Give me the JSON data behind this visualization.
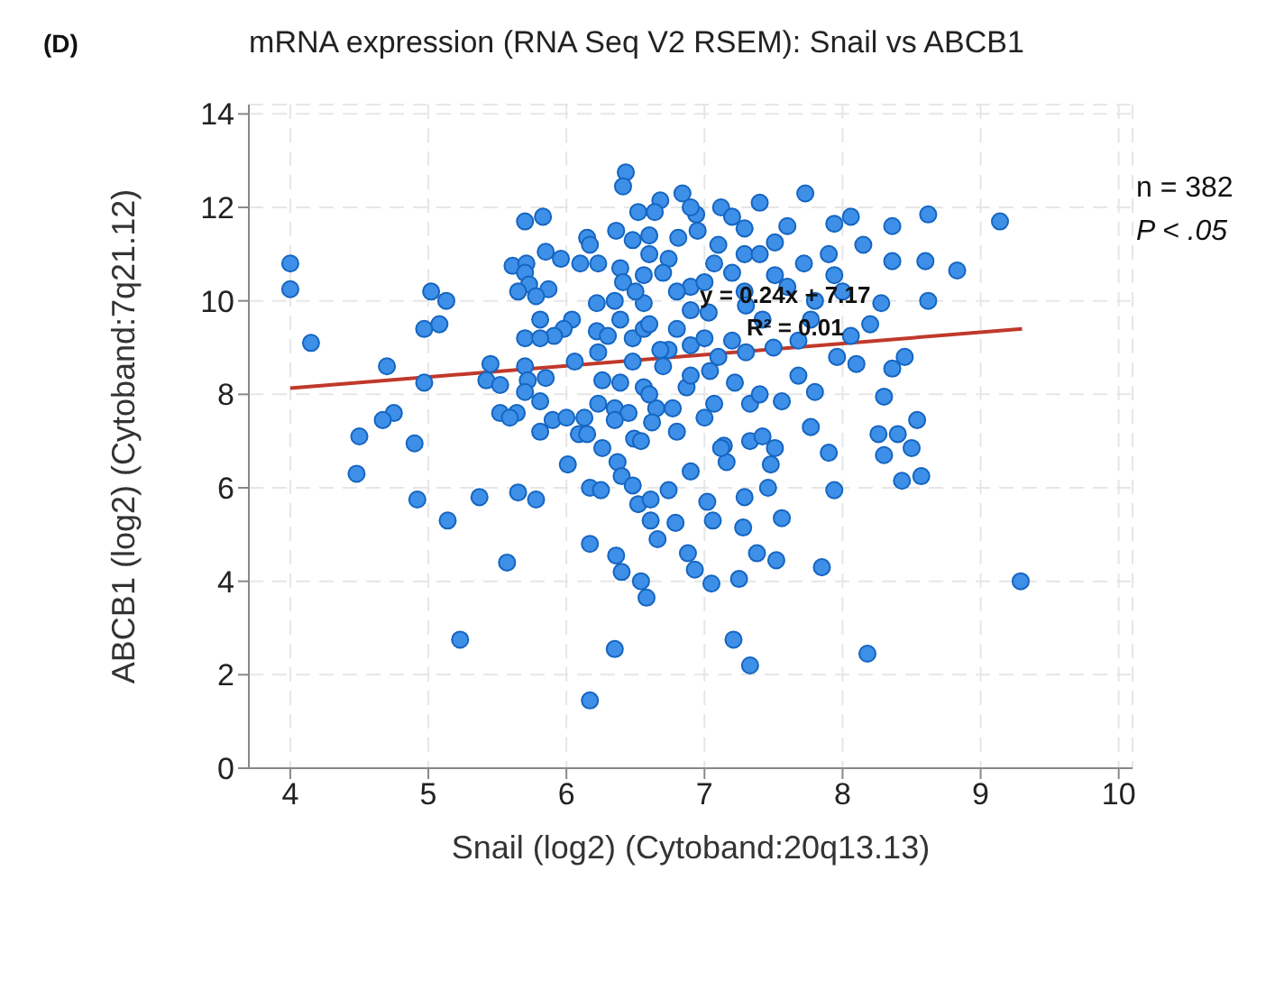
{
  "chart_data": {
    "type": "scatter",
    "title": "mRNA expression (RNA Seq V2 RSEM): Snail vs ABCB1",
    "xlabel": "Snail (log2) (Cytoband:20q13.13)",
    "ylabel": "ABCB1 (log2) (Cytoband:7q21.12)",
    "annotations": [
      "(D)",
      "n = 382",
      "P < .05",
      "y = 0.24x + 7.17",
      "R² = 0.01"
    ],
    "xlim": [
      3.7,
      10.1
    ],
    "xticks": [
      4,
      5,
      6,
      7,
      8,
      9,
      10
    ],
    "ylim": [
      0,
      14.2
    ],
    "yticks": [
      0,
      2,
      4,
      6,
      8,
      10,
      12,
      14
    ],
    "grid": true,
    "legend": false,
    "series": [
      {
        "color": "#3d8fe8",
        "marker": "circle",
        "x": [
          4.0,
          4.0,
          4.15,
          4.7,
          4.97,
          5.02,
          5.13,
          5.08,
          4.97,
          4.75,
          4.67,
          4.5,
          4.9,
          4.48,
          4.92,
          5.14,
          5.37,
          5.65,
          5.78,
          5.57,
          5.23,
          6.17,
          6.36,
          6.4,
          6.54,
          6.58,
          6.35,
          6.17,
          9.29,
          7.21,
          7.33,
          8.18,
          7.85,
          7.52,
          7.38,
          7.25,
          7.05,
          6.93,
          6.88,
          7.56,
          7.28,
          7.06,
          6.79,
          7.02,
          7.29,
          7.46,
          7.94,
          8.43,
          8.57,
          7.9,
          8.3,
          8.5,
          7.48,
          7.16,
          6.9,
          6.74,
          7.51,
          7.33,
          7.14,
          9.14,
          8.62,
          8.83,
          8.6,
          8.62,
          8.36,
          7.73,
          6.84,
          7.29,
          8.3,
          8.54,
          8.4,
          8.26,
          7.77,
          7.56,
          8.45,
          8.36,
          8.1,
          7.96,
          7.51,
          7.94,
          8.06,
          8.15,
          8.36,
          7.94,
          7.72,
          8.28,
          8.06,
          7.68,
          7.2,
          6.9,
          6.74,
          7.04,
          7.22,
          6.87,
          7.33,
          7.68,
          7.8,
          7.07,
          6.77,
          7.42,
          7.12,
          6.81,
          7.12,
          6.94,
          7.51,
          7.29,
          7.42,
          7.77,
          7.03,
          6.9,
          7.07,
          7.29,
          6.74,
          6.43,
          6.41,
          6.68,
          6.52,
          6.64,
          5.7,
          5.83,
          6.15,
          6.17,
          6.36,
          6.48,
          5.85,
          5.96,
          6.1,
          6.23,
          5.61,
          5.71,
          5.7,
          5.73,
          5.65,
          5.87,
          5.78,
          6.39,
          6.56,
          6.41,
          6.22,
          6.35,
          6.56,
          5.81,
          6.04,
          5.98,
          5.91,
          5.7,
          5.81,
          6.22,
          6.39,
          6.3,
          6.48,
          6.56,
          6.23,
          6.68,
          6.48,
          5.45,
          5.7,
          6.06,
          5.42,
          5.52,
          5.72,
          5.85,
          5.7,
          6.26,
          6.39,
          6.56,
          5.81,
          6.23,
          6.35,
          6.45,
          6.65,
          5.52,
          5.64,
          5.59,
          5.81,
          5.9,
          6.0,
          6.13,
          6.09,
          6.15,
          6.35,
          6.62,
          6.49,
          6.26,
          6.01,
          6.37,
          6.4,
          6.48,
          6.17,
          6.25,
          6.52,
          6.61,
          6.61,
          6.66,
          6.54,
          6.6,
          6.7,
          6.8,
          6.9,
          7.0,
          7.1,
          6.95,
          7.2,
          7.3,
          7.4,
          6.6,
          6.8,
          7.0,
          6.7,
          7.1,
          6.9,
          7.3,
          6.6,
          7.0,
          7.4,
          6.8,
          7.6,
          7.8,
          7.5,
          8.0,
          8.2,
          7.9,
          7.6,
          6.5,
          6.6,
          7.2,
          6.9,
          7.4
        ],
        "values": [
          10.8,
          10.25,
          9.1,
          8.6,
          9.4,
          10.2,
          10.0,
          9.5,
          8.25,
          7.6,
          7.45,
          7.1,
          6.95,
          6.3,
          5.75,
          5.3,
          5.8,
          5.9,
          5.75,
          4.4,
          2.75,
          4.8,
          4.55,
          4.2,
          4.0,
          3.65,
          2.55,
          1.45,
          4.0,
          2.75,
          2.2,
          2.45,
          4.3,
          4.45,
          4.6,
          4.05,
          3.95,
          4.25,
          4.6,
          5.35,
          5.15,
          5.3,
          5.25,
          5.7,
          5.8,
          6.0,
          5.95,
          6.15,
          6.25,
          6.75,
          6.7,
          6.85,
          6.5,
          6.55,
          6.35,
          5.95,
          6.85,
          7.0,
          6.9,
          11.7,
          11.85,
          10.65,
          10.85,
          10.0,
          11.6,
          12.3,
          12.3,
          11.55,
          7.95,
          7.45,
          7.15,
          7.15,
          7.3,
          7.85,
          8.8,
          8.55,
          8.65,
          8.8,
          11.25,
          11.65,
          11.8,
          11.2,
          10.85,
          10.55,
          10.8,
          9.95,
          9.25,
          9.15,
          9.15,
          9.05,
          8.95,
          8.5,
          8.25,
          8.15,
          7.8,
          8.4,
          8.05,
          7.8,
          7.7,
          7.1,
          6.85,
          11.35,
          12.0,
          11.85,
          10.55,
          10.2,
          9.6,
          9.6,
          9.75,
          10.3,
          10.8,
          11.0,
          10.9,
          12.75,
          12.45,
          12.15,
          11.9,
          11.9,
          11.7,
          11.8,
          11.35,
          11.2,
          11.5,
          11.3,
          11.05,
          10.9,
          10.8,
          10.8,
          10.75,
          10.8,
          10.6,
          10.35,
          10.2,
          10.25,
          10.1,
          10.7,
          10.55,
          10.4,
          9.95,
          10.0,
          9.95,
          9.6,
          9.6,
          9.4,
          9.25,
          9.2,
          9.2,
          9.35,
          9.6,
          9.25,
          9.2,
          9.4,
          8.9,
          8.95,
          8.7,
          8.65,
          8.6,
          8.7,
          8.3,
          8.2,
          8.3,
          8.35,
          8.05,
          8.3,
          8.25,
          8.15,
          7.85,
          7.8,
          7.7,
          7.6,
          7.7,
          7.6,
          7.6,
          7.5,
          7.2,
          7.45,
          7.5,
          7.5,
          7.15,
          7.15,
          7.45,
          7.4,
          7.05,
          6.85,
          6.5,
          6.55,
          6.25,
          6.05,
          6.0,
          5.95,
          5.65,
          5.75,
          5.3,
          4.9,
          7.0,
          11.0,
          10.6,
          10.2,
          9.8,
          10.4,
          11.2,
          11.5,
          10.6,
          9.9,
          11.0,
          9.5,
          9.4,
          9.2,
          8.6,
          8.8,
          8.4,
          8.9,
          8.0,
          7.5,
          8.0,
          7.2,
          10.3,
          10.0,
          9.0,
          10.2,
          9.5,
          11.0,
          11.6,
          10.2,
          11.4,
          11.8,
          12.0,
          12.1
        ]
      },
      {
        "type": "line",
        "marker": "none",
        "color": "#c0392b",
        "x": [
          4,
          9.3
        ],
        "values": [
          8.13,
          9.4
        ]
      }
    ]
  }
}
